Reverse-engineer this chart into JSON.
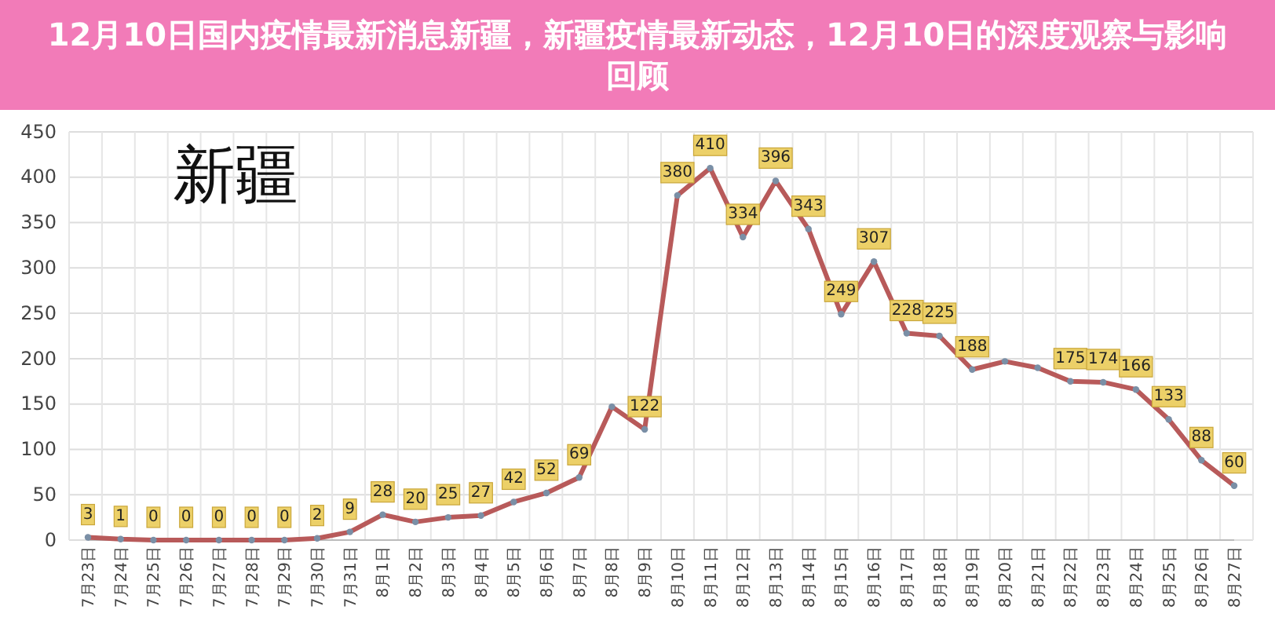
{
  "chart_data": {
    "type": "line",
    "title": "12月10日国内疫情最新消息新疆，新疆疫情最新动态，12月10日的深度观察与影响回顾",
    "subtitle": "新疆",
    "categories": [
      "7月23日",
      "7月24日",
      "7月25日",
      "7月26日",
      "7月27日",
      "7月28日",
      "7月29日",
      "7月30日",
      "7月31日",
      "8月1日",
      "8月2日",
      "8月3日",
      "8月4日",
      "8月5日",
      "8月6日",
      "8月7日",
      "8月8日",
      "8月9日",
      "8月10日",
      "8月11日",
      "8月12日",
      "8月13日",
      "8月14日",
      "8月15日",
      "8月16日",
      "8月17日",
      "8月18日",
      "8月19日",
      "8月20日",
      "8月21日",
      "8月22日",
      "8月23日",
      "8月24日",
      "8月25日",
      "8月26日",
      "8月27日"
    ],
    "series": [
      {
        "color": "#b85a5a",
        "values": [
          3,
          1,
          0,
          0,
          0,
          0,
          0,
          2,
          9,
          28,
          20,
          25,
          27,
          42,
          52,
          69,
          147,
          122,
          380,
          410,
          334,
          396,
          343,
          249,
          307,
          228,
          225,
          188,
          197,
          190,
          175,
          174,
          166,
          133,
          88,
          60
        ],
        "value_labels": [
          "3",
          "1",
          "0",
          "0",
          "0",
          "0",
          "0",
          "2",
          "9",
          "28",
          "20",
          "25",
          "27",
          "42",
          "52",
          "69",
          null,
          "122",
          "380",
          "410",
          "334",
          "396",
          "343",
          "249",
          "307",
          "228",
          "225",
          "188",
          null,
          null,
          "175",
          "174",
          "166",
          "133",
          "88",
          "60"
        ]
      }
    ],
    "ylim": [
      0,
      450
    ],
    "yticks": [
      0,
      50,
      100,
      150,
      200,
      250,
      300,
      350,
      400,
      450
    ],
    "grid": true,
    "marker": "circle"
  }
}
